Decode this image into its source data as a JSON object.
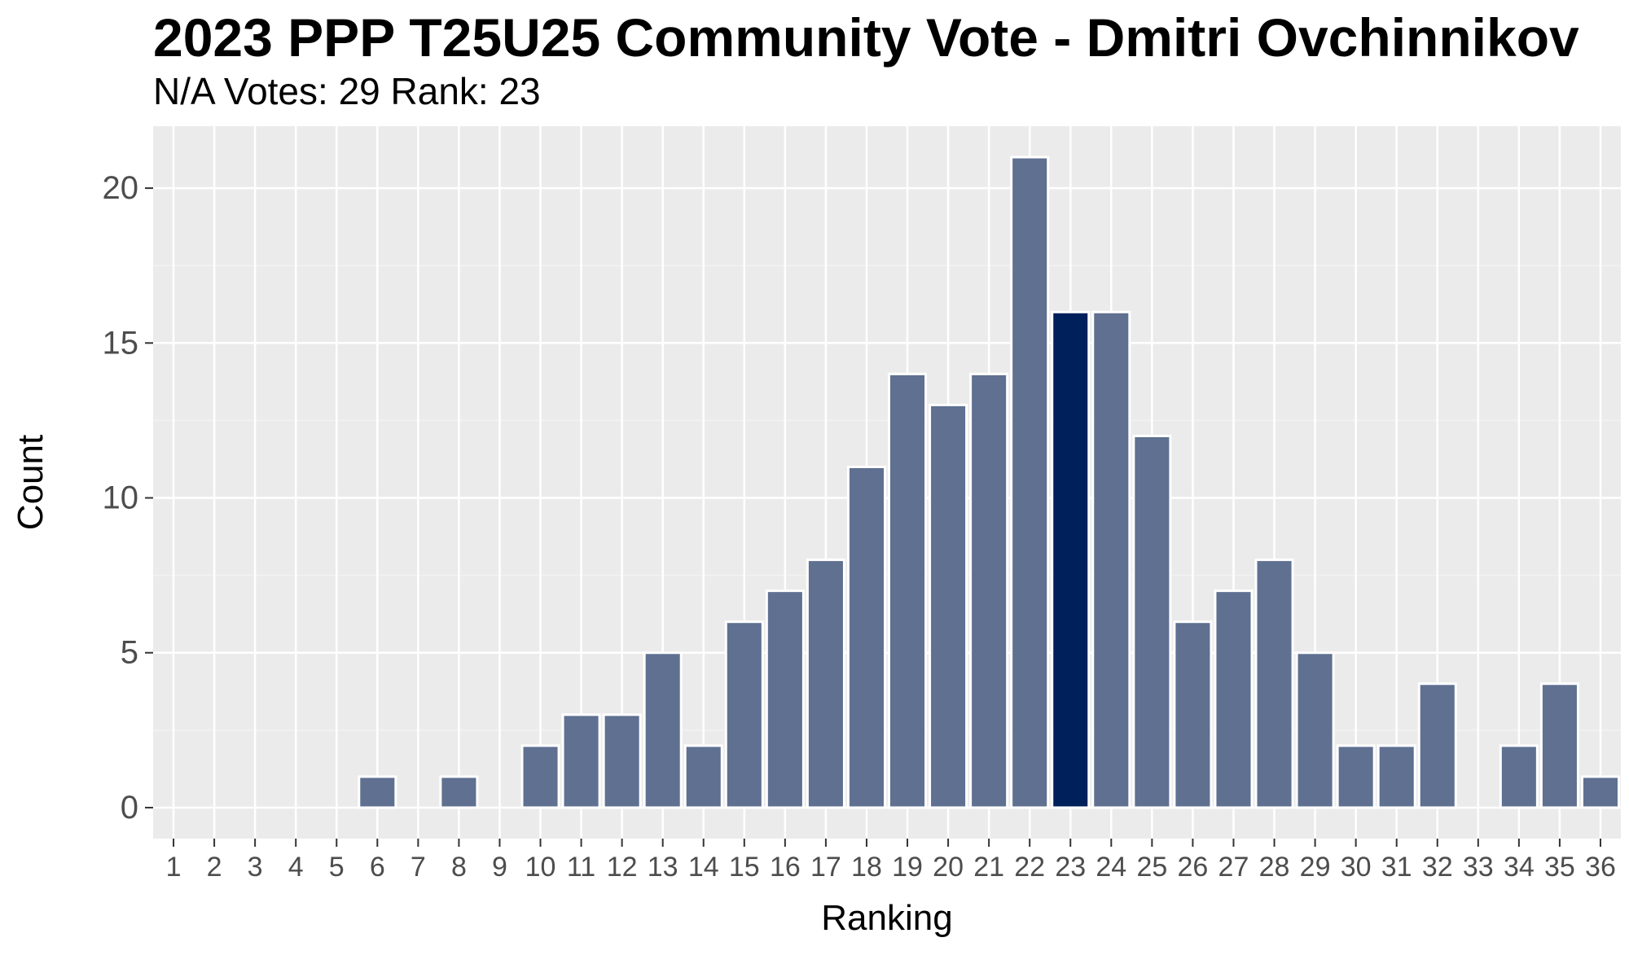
{
  "chart_data": {
    "type": "bar",
    "title": "2023 PPP T25U25 Community Vote - Dmitri Ovchinnikov",
    "subtitle": "N/A Votes: 29  Rank: 23",
    "xlabel": "Ranking",
    "ylabel": "Count",
    "categories": [
      "1",
      "2",
      "3",
      "4",
      "5",
      "6",
      "7",
      "8",
      "9",
      "10",
      "11",
      "12",
      "13",
      "14",
      "15",
      "16",
      "17",
      "18",
      "19",
      "20",
      "21",
      "22",
      "23",
      "24",
      "25",
      "26",
      "27",
      "28",
      "29",
      "30",
      "31",
      "32",
      "33",
      "34",
      "35",
      "36"
    ],
    "values": [
      0,
      0,
      0,
      0,
      0,
      1,
      0,
      1,
      0,
      2,
      3,
      3,
      5,
      2,
      6,
      7,
      8,
      11,
      14,
      13,
      14,
      21,
      16,
      16,
      12,
      6,
      7,
      8,
      5,
      2,
      2,
      4,
      0,
      2,
      4,
      1
    ],
    "highlight_category": "23",
    "yticks": [
      0,
      5,
      10,
      15,
      20
    ],
    "ylim": [
      -1,
      22
    ],
    "grid": true,
    "legend": "none",
    "colors": {
      "bar": "#5f7091",
      "highlight": "#00205b",
      "bar_outline": "#ffffff",
      "panel": "#ebebeb",
      "grid_major": "#ffffff",
      "grid_minor": "#f2f2f2"
    }
  }
}
